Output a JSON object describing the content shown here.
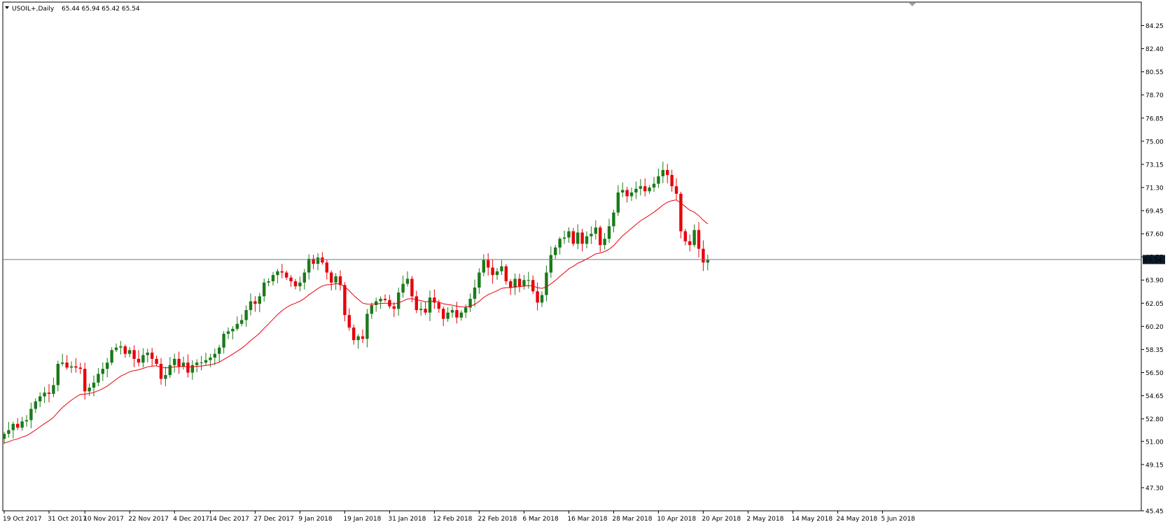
{
  "header": {
    "symbol": "USOIL+,Daily",
    "ohlc": "65.44 65.94 65.42 65.54"
  },
  "colors": {
    "bull": "#1a7a1a",
    "bear": "#e8000b",
    "ma": "#e8000b",
    "current_line": "#5b7f95",
    "price_tag_bg": "#0c1b2a",
    "price_tag_text": "#ffffff"
  },
  "chart_data": {
    "type": "candlestick",
    "symbol": "USOIL+",
    "timeframe": "Daily",
    "current_price": 65.54,
    "current_price_label": "65.54",
    "y_range": [
      45.45,
      85.9
    ],
    "y_ticks": [
      "84.25",
      "82.40",
      "80.55",
      "78.70",
      "76.85",
      "75.00",
      "73.15",
      "71.30",
      "69.45",
      "67.60",
      "65.75",
      "63.90",
      "62.05",
      "60.20",
      "58.35",
      "56.50",
      "54.65",
      "52.80",
      "51.00",
      "49.15",
      "47.30",
      "45.45"
    ],
    "x_labels": [
      {
        "index": 0,
        "label": "19 Oct 2017"
      },
      {
        "index": 10,
        "label": "31 Oct 2017"
      },
      {
        "index": 18,
        "label": "10 Nov 2017"
      },
      {
        "index": 28,
        "label": "22 Nov 2017"
      },
      {
        "index": 38,
        "label": "4 Dec 2017"
      },
      {
        "index": 46,
        "label": "14 Dec 2017"
      },
      {
        "index": 56,
        "label": "27 Dec 2017"
      },
      {
        "index": 66,
        "label": "9 Jan 2018"
      },
      {
        "index": 76,
        "label": "19 Jan 2018"
      },
      {
        "index": 86,
        "label": "31 Jan 2018"
      },
      {
        "index": 96,
        "label": "12 Feb 2018"
      },
      {
        "index": 106,
        "label": "22 Feb 2018"
      },
      {
        "index": 116,
        "label": "6 Mar 2018"
      },
      {
        "index": 126,
        "label": "16 Mar 2018"
      },
      {
        "index": 136,
        "label": "28 Mar 2018"
      },
      {
        "index": 146,
        "label": "10 Apr 2018"
      },
      {
        "index": 156,
        "label": "20 Apr 2018"
      },
      {
        "index": 166,
        "label": "2 May 2018"
      },
      {
        "index": 176,
        "label": "14 May 2018"
      },
      {
        "index": 186,
        "label": "24 May 2018"
      },
      {
        "index": 196,
        "label": "5 Jun 2018"
      }
    ],
    "closes": [
      51.6,
      51.9,
      52.4,
      52.1,
      52.6,
      52.7,
      53.6,
      54.2,
      54.6,
      54.9,
      54.8,
      55.5,
      57.2,
      57.3,
      56.9,
      57.0,
      56.9,
      56.8,
      55.0,
      55.3,
      55.7,
      56.4,
      56.8,
      57.3,
      58.3,
      58.5,
      58.6,
      58.0,
      58.3,
      57.6,
      57.3,
      57.9,
      58.1,
      57.6,
      57.2,
      56.0,
      56.3,
      57.1,
      57.6,
      57.0,
      57.3,
      56.5,
      57.1,
      57.3,
      57.3,
      57.5,
      57.7,
      58.0,
      58.5,
      59.6,
      59.8,
      60.0,
      60.4,
      60.7,
      61.5,
      62.2,
      62.0,
      62.6,
      63.7,
      63.8,
      64.3,
      64.6,
      64.5,
      64.1,
      63.8,
      63.4,
      63.7,
      64.5,
      65.6,
      65.2,
      65.7,
      65.3,
      64.5,
      63.7,
      64.2,
      63.5,
      61.1,
      60.1,
      59.1,
      59.4,
      59.2,
      61.2,
      61.9,
      62.2,
      62.4,
      62.3,
      61.8,
      61.6,
      62.9,
      63.6,
      64.0,
      62.6,
      61.5,
      61.6,
      61.3,
      62.5,
      62.1,
      61.6,
      60.8,
      61.3,
      61.5,
      60.9,
      61.3,
      61.7,
      62.4,
      63.3,
      64.5,
      65.5,
      64.9,
      64.3,
      64.6,
      65.0,
      63.8,
      63.3,
      64.0,
      63.4,
      63.9,
      63.9,
      63.0,
      62.1,
      62.7,
      64.5,
      65.9,
      66.5,
      67.2,
      67.3,
      67.8,
      66.8,
      67.7,
      66.8,
      67.4,
      67.6,
      68.1,
      66.7,
      67.2,
      68.2,
      69.3,
      70.9,
      71.1,
      70.6,
      70.9,
      71.2,
      71.4,
      71.0,
      71.3,
      71.6,
      72.2,
      72.7,
      72.3,
      71.4,
      70.8,
      67.8,
      67.0,
      66.7,
      67.9,
      66.4,
      65.3,
      65.5
    ],
    "ma_period_note": "moving average line"
  }
}
